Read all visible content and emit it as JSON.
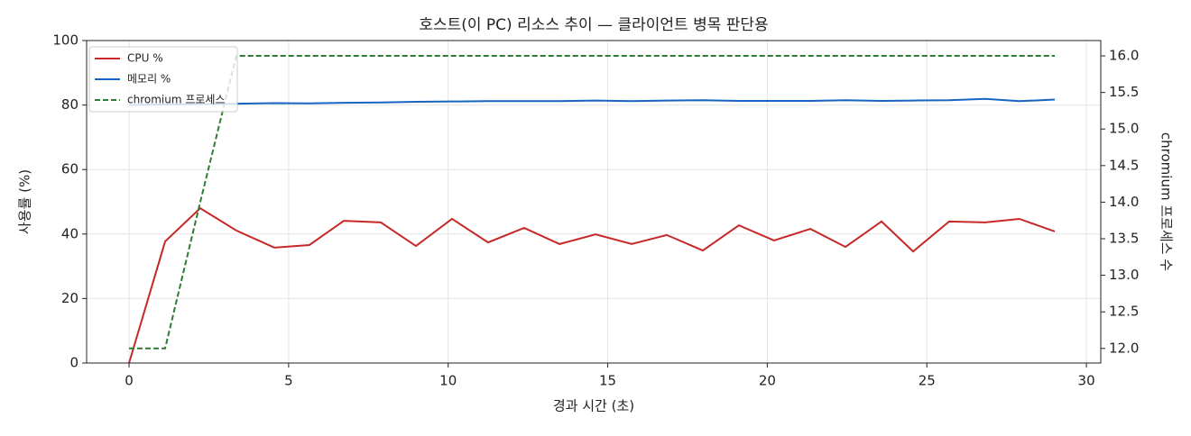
{
  "chart_data": {
    "type": "line",
    "title": "호스트(이 PC) 리소스 추이 — 클라이언트 병목 판단용",
    "xlabel": "경과 시간 (초)",
    "ylabel": "사용률 (%)",
    "y2label": "chromium 프로세스 수",
    "x": [
      0,
      1.13,
      2.23,
      3.36,
      4.55,
      5.65,
      6.73,
      7.89,
      8.99,
      10.12,
      11.25,
      12.38,
      13.49,
      14.62,
      15.75,
      16.85,
      17.98,
      19.11,
      20.21,
      21.35,
      22.45,
      23.58,
      24.57,
      25.7,
      26.83,
      27.9,
      29.01
    ],
    "series": [
      {
        "name": "CPU %",
        "color": "#c62828",
        "linestyle": "solid",
        "values": [
          0,
          37.7,
          48.0,
          41.1,
          35.8,
          36.6,
          44.1,
          43.6,
          36.3,
          44.7,
          37.4,
          41.9,
          36.9,
          39.9,
          36.9,
          39.7,
          34.9,
          42.7,
          38.0,
          41.6,
          36.0,
          43.9,
          34.6,
          43.9,
          43.6,
          44.7,
          40.8
        ]
      },
      {
        "name": "메모리 %",
        "color": "#1565c0",
        "linestyle": "solid",
        "values": [
          80.0,
          80.2,
          80.3,
          80.4,
          80.6,
          80.5,
          80.7,
          80.8,
          81.0,
          81.1,
          81.2,
          81.2,
          81.2,
          81.4,
          81.2,
          81.4,
          81.5,
          81.3,
          81.3,
          81.3,
          81.5,
          81.3,
          81.4,
          81.5,
          81.9,
          81.2,
          81.7
        ]
      },
      {
        "name": "chromium 프로세스",
        "color": "#2e7d32",
        "linestyle": "dashed",
        "axis": "y2",
        "values": [
          12,
          12,
          14,
          16,
          16,
          16,
          16,
          16,
          16,
          16,
          16,
          16,
          16,
          16,
          16,
          16,
          16,
          16,
          16,
          16,
          16,
          16,
          16,
          16,
          16,
          16,
          16
        ]
      }
    ],
    "xlim": [
      -1.33,
      30.45
    ],
    "xticks": [
      0,
      5,
      10,
      15,
      20,
      25,
      30
    ],
    "ylim": [
      0,
      100
    ],
    "yticks": [
      0,
      20,
      40,
      60,
      80,
      100
    ],
    "y2lim": [
      11.8,
      16.21
    ],
    "y2ticks": [
      {
        "value": 12,
        "label": "12.0"
      },
      12.5,
      {
        "value": 13,
        "label": "13.0"
      },
      13.5,
      {
        "value": 14,
        "label": "14.0"
      },
      14.5,
      {
        "value": 15,
        "label": "15.0"
      },
      15.5,
      {
        "value": 16,
        "label": "16.0"
      }
    ],
    "grid": true,
    "legend": "upper left"
  }
}
